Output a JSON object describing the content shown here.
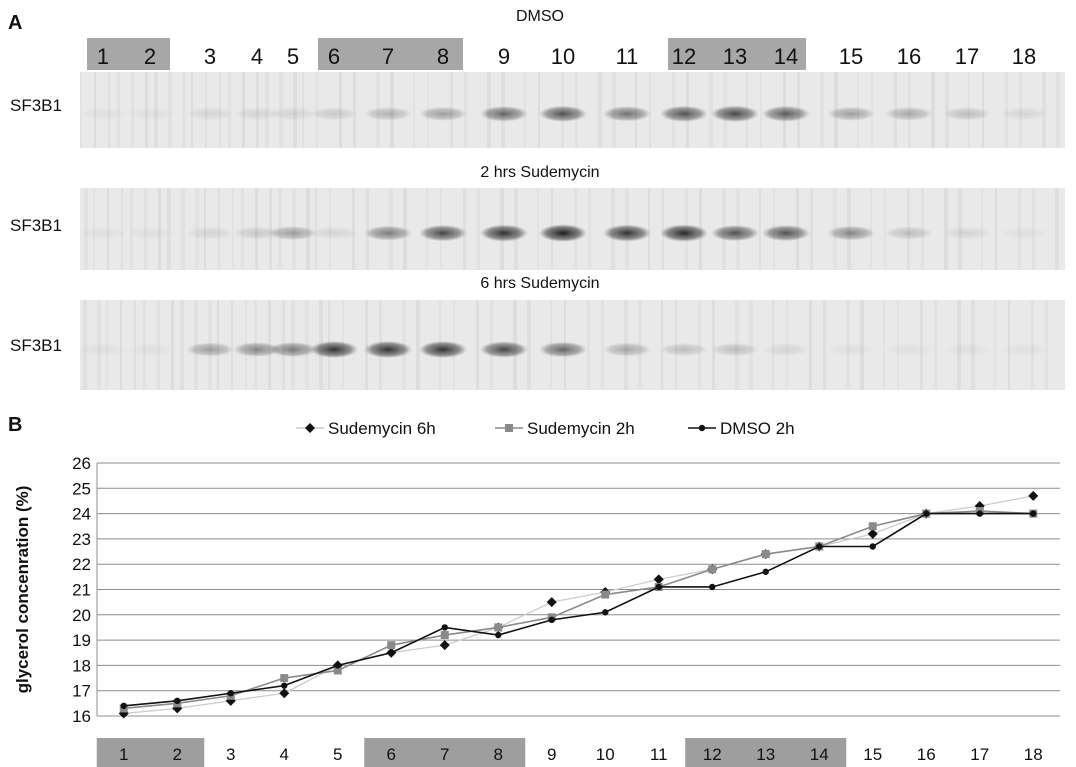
{
  "panel_a": {
    "letter": "A",
    "blot_label": "SF3B1",
    "conditions": [
      "DMSO",
      "2 hrs Sudemycin",
      "6 hrs Sudemycin"
    ],
    "lanes": [
      "1",
      "2",
      "3",
      "4",
      "5",
      "6",
      "7",
      "8",
      "9",
      "10",
      "11",
      "12",
      "13",
      "14",
      "15",
      "16",
      "17",
      "18"
    ],
    "highlighted_lanes": [
      [
        1,
        2
      ],
      [
        6,
        8
      ],
      [
        12,
        14
      ]
    ],
    "band_intensity": {
      "DMSO": [
        0.05,
        0.05,
        0.1,
        0.1,
        0.1,
        0.15,
        0.25,
        0.35,
        0.6,
        0.7,
        0.55,
        0.7,
        0.75,
        0.65,
        0.35,
        0.3,
        0.2,
        0.1
      ],
      "2 hrs Sudemycin": [
        0.05,
        0.05,
        0.1,
        0.15,
        0.35,
        0.1,
        0.5,
        0.75,
        0.85,
        0.95,
        0.85,
        0.9,
        0.7,
        0.7,
        0.45,
        0.2,
        0.1,
        0.05
      ],
      "6 hrs Sudemycin": [
        0.05,
        0.05,
        0.35,
        0.45,
        0.5,
        0.85,
        0.85,
        0.85,
        0.75,
        0.6,
        0.3,
        0.2,
        0.2,
        0.1,
        0.05,
        0.05,
        0.05,
        0.05
      ]
    }
  },
  "panel_b": {
    "letter": "B"
  },
  "chart_data": {
    "type": "line",
    "ylabel": "glycerol concenration (%)",
    "xlabel": "",
    "categories": [
      "1",
      "2",
      "3",
      "4",
      "5",
      "6",
      "7",
      "8",
      "9",
      "10",
      "11",
      "12",
      "13",
      "14",
      "15",
      "16",
      "17",
      "18"
    ],
    "highlighted_categories": [
      [
        1,
        2
      ],
      [
        6,
        8
      ],
      [
        12,
        14
      ]
    ],
    "ylim": [
      16,
      26
    ],
    "yticks": [
      "16",
      "17",
      "18",
      "19",
      "20",
      "21",
      "22",
      "23",
      "24",
      "25",
      "26"
    ],
    "grid": true,
    "legend": "top",
    "series": [
      {
        "name": "Sudemycin 6h",
        "marker": "diamond",
        "color": "#cccccc",
        "marker_color": "#111111",
        "values": [
          16.1,
          16.3,
          16.6,
          16.9,
          18.0,
          18.5,
          18.8,
          19.5,
          20.5,
          20.9,
          21.4,
          21.8,
          22.4,
          22.7,
          23.2,
          24.0,
          24.3,
          24.7
        ]
      },
      {
        "name": "Sudemycin 2h",
        "marker": "square",
        "color": "#8a8a8a",
        "marker_color": "#8a8a8a",
        "values": [
          16.3,
          16.5,
          16.8,
          17.5,
          17.8,
          18.8,
          19.2,
          19.5,
          19.9,
          20.8,
          21.1,
          21.8,
          22.4,
          22.7,
          23.5,
          24.0,
          24.1,
          24.0
        ]
      },
      {
        "name": "DMSO 2h",
        "marker": "circle",
        "color": "#111111",
        "marker_color": "#111111",
        "values": [
          16.4,
          16.6,
          16.9,
          17.2,
          18.0,
          18.5,
          19.5,
          19.2,
          19.8,
          20.1,
          21.1,
          21.1,
          21.7,
          22.7,
          22.7,
          24.0,
          24.0,
          24.0
        ]
      }
    ]
  }
}
